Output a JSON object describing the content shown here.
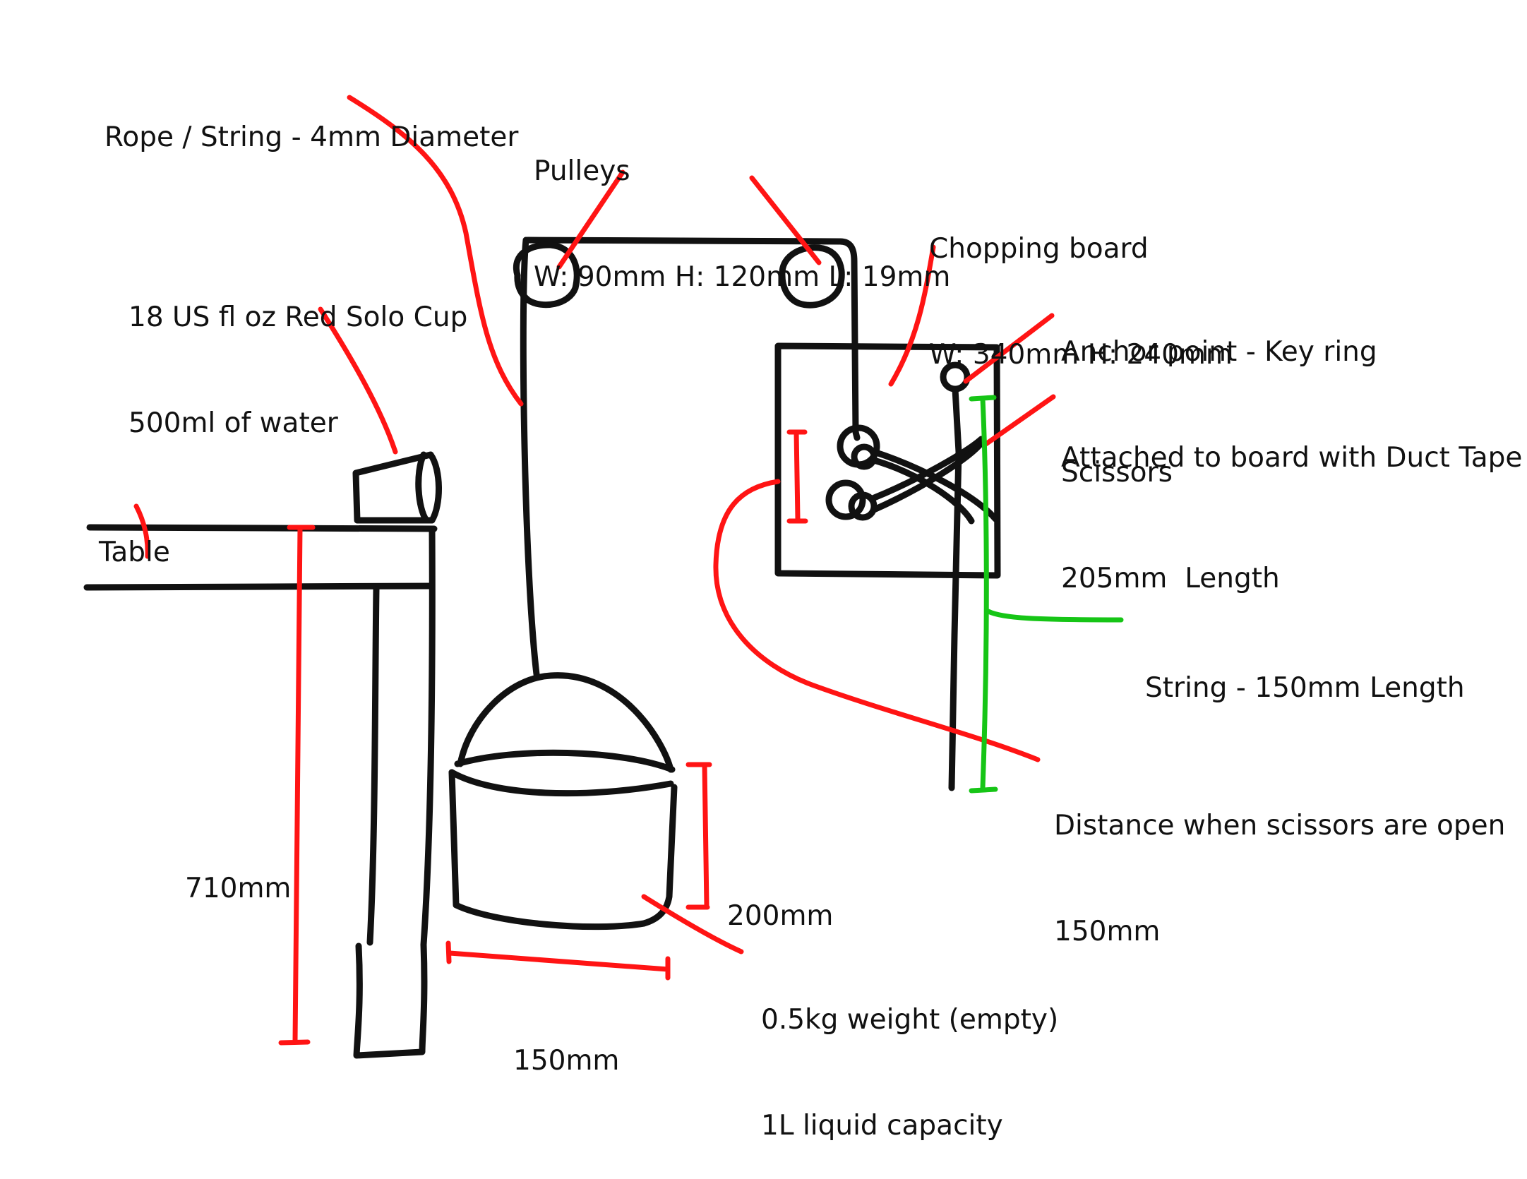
{
  "colors": {
    "ink": "#111111",
    "annotation": "#ff1414",
    "string_highlight": "#16c516",
    "background": "#ffffff"
  },
  "labels": {
    "rope": "Rope / String - 4mm Diameter",
    "pulleys_title": "Pulleys",
    "pulleys_dims": "W: 90mm H: 120mm L: 19mm",
    "board_title": "Chopping board",
    "board_dims": "W: 340mm H: 240mm",
    "cup_title": "18 US fl oz Red Solo Cup",
    "cup_volume": "500ml of water",
    "anchor_title": "Anchor point - Key ring",
    "anchor_desc": "Attached to board with Duct Tape",
    "scissors_title": "Scissors",
    "scissors_length": "205mm  Length",
    "table": "Table",
    "string_length": "String - 150mm Length",
    "distance_title": "Distance when scissors are open",
    "distance_value": "150mm",
    "table_height": "710mm",
    "bucket_height": "200mm",
    "bucket_weight": "0.5kg weight (empty)",
    "bucket_capacity": "1L liquid capacity",
    "bucket_width": "150mm"
  }
}
